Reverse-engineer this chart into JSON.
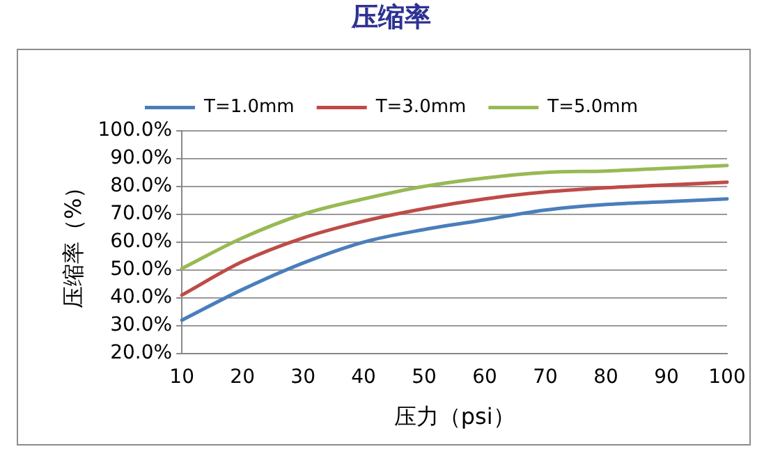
{
  "chart_data": {
    "type": "line",
    "title": "压缩率",
    "xlabel": "压力（psi）",
    "ylabel": "压缩率（%）",
    "categories": [
      "10",
      "20",
      "30",
      "40",
      "50",
      "60",
      "70",
      "80",
      "90",
      "100"
    ],
    "series": [
      {
        "name": "T=1.0mm",
        "color": "#4a7ebb",
        "values": [
          32,
          43,
          52.5,
          60,
          64.5,
          68,
          71.5,
          73.5,
          74.5,
          75.5
        ]
      },
      {
        "name": "T=3.0mm",
        "color": "#be4b48",
        "values": [
          41,
          53,
          61.5,
          67.5,
          72,
          75.5,
          78,
          79.5,
          80.5,
          81.5
        ]
      },
      {
        "name": "T=5.0mm",
        "color": "#98b954",
        "values": [
          50.5,
          61.5,
          70,
          75.5,
          80,
          83,
          85,
          85.5,
          86.5,
          87.5
        ]
      }
    ],
    "ylim": [
      20,
      100
    ],
    "yticks": [
      {
        "value": 20,
        "label": "20.0%"
      },
      {
        "value": 30,
        "label": "30.0%"
      },
      {
        "value": 40,
        "label": "40.0%"
      },
      {
        "value": 50,
        "label": "50.0%"
      },
      {
        "value": 60,
        "label": "60.0%"
      },
      {
        "value": 70,
        "label": "70.0%"
      },
      {
        "value": 80,
        "label": "80.0%"
      },
      {
        "value": 90,
        "label": "90.0%"
      },
      {
        "value": 100,
        "label": "100.0%"
      }
    ],
    "grid": "y",
    "legend": "top",
    "marker": "none",
    "line_style": "solid"
  }
}
